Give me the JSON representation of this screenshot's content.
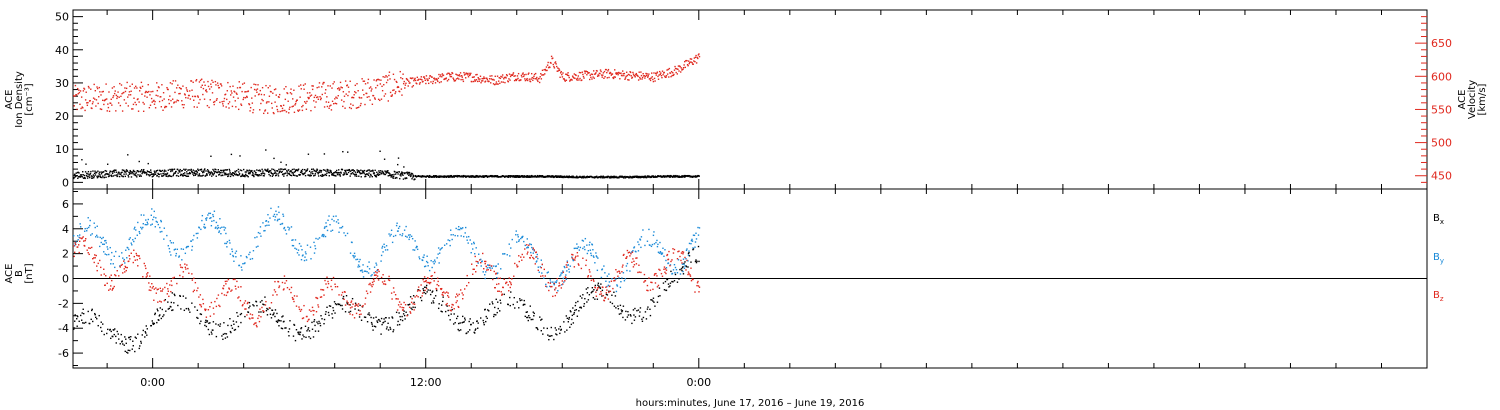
{
  "colors": {
    "black": "#000000",
    "red": "#e0281e",
    "blue": "#1a8ad8"
  },
  "chart_data": [
    {
      "type": "scatter",
      "panel": "top",
      "ylabel_left": [
        "ACE",
        "Ion Density",
        "[cm⁻³]"
      ],
      "ylabel_right": [
        "ACE",
        "Velocity",
        "[km/s]"
      ],
      "left_axis": {
        "ylim": [
          -2,
          52
        ],
        "ticks": [
          0,
          10,
          20,
          30,
          40,
          50
        ],
        "tick_labels": [
          "0",
          "10",
          "20",
          "30",
          "40",
          "50"
        ]
      },
      "right_axis": {
        "ylim": [
          430,
          700
        ],
        "ticks": [
          450,
          500,
          550,
          600,
          650
        ],
        "tick_labels": [
          "450",
          "500",
          "550",
          "600",
          "650"
        ]
      },
      "series": [
        {
          "name": "Ion Density",
          "axis": "left",
          "color": "black",
          "x_hours": [
            -3.5,
            -2,
            0,
            2,
            4,
            6,
            8,
            10,
            11.5,
            13,
            15,
            17,
            19,
            21,
            22.5,
            24
          ],
          "y": [
            2.3,
            2.8,
            3.0,
            3.2,
            3.0,
            3.2,
            3.1,
            2.8,
            2.0,
            2.0,
            2.0,
            2.0,
            1.8,
            1.8,
            2.0,
            2.0
          ],
          "noise_until_hour": 11.5
        },
        {
          "name": "Velocity",
          "axis": "right",
          "color": "red",
          "x_hours": [
            -3.5,
            -2,
            0,
            1.5,
            3,
            5,
            7,
            9,
            11,
            12,
            13,
            14,
            15,
            16,
            17,
            17.5,
            18,
            19,
            20,
            21,
            22,
            23,
            24
          ],
          "y": [
            565,
            570,
            570,
            575,
            575,
            565,
            570,
            575,
            590,
            595,
            600,
            600,
            595,
            602,
            598,
            625,
            600,
            602,
            605,
            602,
            600,
            610,
            630
          ]
        }
      ]
    },
    {
      "type": "scatter",
      "panel": "bottom",
      "ylabel_left": [
        "ACE",
        "B",
        "[nT]"
      ],
      "left_axis": {
        "ylim": [
          -7.2,
          7.2
        ],
        "ticks": [
          -6,
          -4,
          -2,
          0,
          2,
          4,
          6
        ],
        "tick_labels": [
          "-6",
          "-4",
          "-2",
          "0",
          "2",
          "4",
          "6"
        ]
      },
      "zero_line": true,
      "legend": [
        "B",
        "B",
        "B"
      ],
      "legend_subscripts": [
        "x",
        "y",
        "z"
      ],
      "series": [
        {
          "name": "Bx",
          "color": "black",
          "x_hours": [
            -3.5,
            -2,
            0,
            2,
            4,
            6,
            8,
            10,
            12,
            14,
            16,
            18,
            20,
            22,
            23,
            24
          ],
          "y": [
            -4,
            -4.5,
            -3.5,
            -2.5,
            -3.5,
            -3,
            -3.5,
            -2.5,
            -2.5,
            -2.5,
            -3,
            -3,
            -2,
            -1.5,
            -1,
            2
          ]
        },
        {
          "name": "By",
          "color": "blue",
          "x_hours": [
            -3.5,
            -2,
            0,
            2,
            4,
            6,
            8,
            10,
            12,
            14,
            16,
            18,
            20,
            22,
            24
          ],
          "y": [
            2.5,
            3,
            3.5,
            3.5,
            3,
            4,
            3,
            2,
            3,
            2,
            2,
            1,
            1,
            2,
            3
          ]
        },
        {
          "name": "Bz",
          "color": "red",
          "x_hours": [
            -3.5,
            -2,
            0,
            2,
            4,
            6,
            8,
            10,
            12,
            14,
            16,
            18,
            20,
            22,
            24
          ],
          "y": [
            2,
            1,
            0,
            -1,
            -2,
            -1.5,
            -1.5,
            -1,
            -1.5,
            0,
            1,
            0.5,
            0,
            1,
            0.5
          ]
        }
      ],
      "x_axis": {
        "xlim_hours": [
          -3.5,
          56
        ],
        "data_end_hour": 24,
        "ticks_hours": [
          0,
          12,
          24
        ],
        "tick_labels": [
          "0:00",
          "12:00",
          "0:00"
        ],
        "minor_step_hours": 2,
        "title": "hours:minutes, June 17, 2016 – June 19, 2016"
      }
    }
  ]
}
